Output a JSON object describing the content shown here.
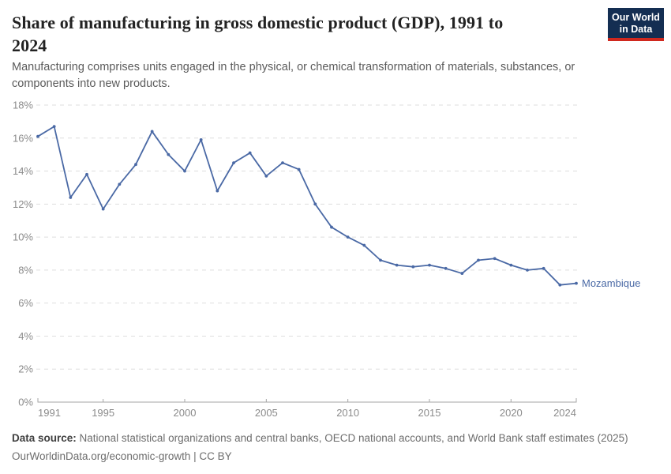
{
  "header": {
    "title_lines": [
      "Share of manufacturing in gross domestic product (GDP), 1991 to",
      "2024"
    ],
    "subtitle_lines": [
      "Manufacturing comprises units engaged in the physical, or chemical transformation of materials, substances, or",
      "components into new products."
    ]
  },
  "logo": {
    "line1": "Our World",
    "line2": "in Data",
    "bg_color": "#142e52",
    "bar_color": "#d0281e"
  },
  "chart_data": {
    "type": "line",
    "title": "Share of manufacturing in gross domestic product (GDP), 1991 to 2024",
    "x": [
      1991,
      1992,
      1993,
      1994,
      1995,
      1996,
      1997,
      1998,
      1999,
      2000,
      2001,
      2002,
      2003,
      2004,
      2005,
      2006,
      2007,
      2008,
      2009,
      2010,
      2011,
      2012,
      2013,
      2014,
      2015,
      2016,
      2017,
      2018,
      2019,
      2020,
      2021,
      2022,
      2023,
      2024
    ],
    "series": [
      {
        "name": "Mozambique",
        "color": "#4a69a5",
        "values": [
          16.1,
          16.7,
          12.4,
          13.8,
          11.7,
          13.2,
          14.4,
          16.4,
          15.0,
          14.0,
          15.9,
          12.8,
          14.5,
          15.1,
          13.7,
          14.5,
          14.1,
          12.0,
          10.6,
          10.0,
          9.5,
          8.6,
          8.3,
          8.2,
          8.3,
          8.1,
          7.8,
          8.6,
          8.7,
          8.3,
          8.0,
          8.1,
          7.1,
          7.2
        ]
      }
    ],
    "xlabel": "",
    "ylabel": "",
    "ylim": [
      0,
      18
    ],
    "yticks": [
      0,
      2,
      4,
      6,
      8,
      10,
      12,
      14,
      16,
      18
    ],
    "y_tick_suffix": "%",
    "xticks": [
      1991,
      1995,
      2000,
      2005,
      2010,
      2015,
      2020,
      2024
    ],
    "grid": "horizontal-dashed",
    "legend": "end-of-line-label"
  },
  "footer": {
    "datasource_label": "Data source:",
    "datasource_text": "National statistical organizations and central banks, OECD national accounts, and World Bank staff estimates (2025)",
    "link": "OurWorldinData.org/economic-growth",
    "separator": "|",
    "license": "CC BY"
  }
}
